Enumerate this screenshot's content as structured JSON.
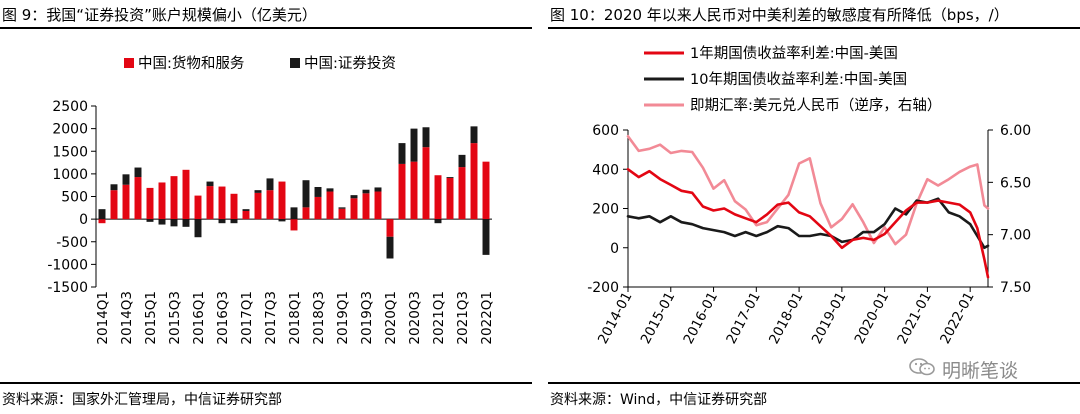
{
  "left": {
    "title": "图 9：我国“证券投资”账户规模偏小（亿美元）",
    "source": "资料来源：国家外汇管理局，中信证券研究部"
  },
  "right": {
    "title": "图 10：2020 年以来人民币对中美利差的敏感度有所降低（bps，/）",
    "source": "资料来源：Wind，中信证券研究部"
  },
  "watermark": {
    "text": "明晰笔谈"
  },
  "colors": {
    "red": "#e30613",
    "black": "#1a1a1a",
    "pink": "#f28a96"
  },
  "chart_data": [
    {
      "type": "bar",
      "stacked": true,
      "categories": [
        "2014Q1",
        "2014Q2",
        "2014Q3",
        "2014Q4",
        "2015Q1",
        "2015Q2",
        "2015Q3",
        "2015Q4",
        "2016Q1",
        "2016Q2",
        "2016Q3",
        "2016Q4",
        "2017Q1",
        "2017Q2",
        "2017Q3",
        "2017Q4",
        "2018Q1",
        "2018Q2",
        "2018Q3",
        "2018Q4",
        "2019Q1",
        "2019Q2",
        "2019Q3",
        "2019Q4",
        "2020Q1",
        "2020Q2",
        "2020Q3",
        "2020Q4",
        "2021Q1",
        "2021Q2",
        "2021Q3",
        "2021Q4",
        "2022Q1"
      ],
      "tick_labels": [
        "2014Q1",
        "2014Q3",
        "2015Q1",
        "2015Q3",
        "2016Q1",
        "2016Q3",
        "2017Q1",
        "2017Q3",
        "2018Q1",
        "2018Q3",
        "2019Q1",
        "2019Q3",
        "2020Q1",
        "2020Q3",
        "2021Q1",
        "2021Q3",
        "2022Q1"
      ],
      "series": [
        {
          "name": "中国:货物和服务",
          "color": "#e30613",
          "values": [
            -90,
            640,
            760,
            930,
            690,
            810,
            950,
            1090,
            520,
            730,
            720,
            560,
            180,
            580,
            640,
            830,
            -250,
            260,
            490,
            610,
            230,
            460,
            570,
            610,
            -390,
            1220,
            1270,
            1590,
            970,
            910,
            1150,
            1680,
            1270
          ]
        },
        {
          "name": "中国:证券投资",
          "color": "#1a1a1a",
          "values": [
            220,
            130,
            230,
            210,
            -60,
            -120,
            -160,
            -170,
            -400,
            100,
            -90,
            -90,
            40,
            60,
            260,
            -50,
            260,
            600,
            220,
            70,
            30,
            70,
            80,
            90,
            -480,
            460,
            730,
            440,
            -90,
            20,
            270,
            370,
            -790
          ]
        }
      ],
      "ylim": [
        -1500,
        2500
      ],
      "yticks": [
        -1500,
        -1000,
        -500,
        0,
        500,
        1000,
        1500,
        2000,
        2500
      ],
      "legend_position": "top-left"
    },
    {
      "type": "line",
      "x_tick_labels": [
        "2014-01",
        "2015-01",
        "2016-01",
        "2017-01",
        "2018-01",
        "2019-01",
        "2020-01",
        "2021-01",
        "2022-01"
      ],
      "x_range": [
        "2014-01",
        "2022-06"
      ],
      "left_ylim": [
        -200,
        600
      ],
      "left_yticks": [
        -200,
        0,
        200,
        400,
        600
      ],
      "right_ylim": [
        6.0,
        7.5
      ],
      "right_yticks": [
        "6.00",
        "6.50",
        "7.00",
        "7.50"
      ],
      "right_axis_inverted": true,
      "legend_position": "top",
      "series": [
        {
          "name": "1年期国债收益率利差:中国-美国",
          "axis": "left",
          "color": "#e30613",
          "x": [
            "2014-01",
            "2014-04",
            "2014-07",
            "2014-10",
            "2015-01",
            "2015-04",
            "2015-07",
            "2015-10",
            "2016-01",
            "2016-04",
            "2016-07",
            "2016-10",
            "2017-01",
            "2017-04",
            "2017-07",
            "2017-10",
            "2018-01",
            "2018-04",
            "2018-07",
            "2018-10",
            "2019-01",
            "2019-04",
            "2019-07",
            "2019-10",
            "2020-01",
            "2020-04",
            "2020-07",
            "2020-10",
            "2021-01",
            "2021-04",
            "2021-07",
            "2021-10",
            "2022-01",
            "2022-03",
            "2022-05",
            "2022-06"
          ],
          "y": [
            400,
            360,
            390,
            350,
            320,
            290,
            280,
            210,
            190,
            200,
            170,
            150,
            130,
            170,
            220,
            230,
            180,
            160,
            110,
            60,
            0,
            40,
            50,
            40,
            70,
            130,
            190,
            230,
            230,
            240,
            230,
            220,
            180,
            100,
            -60,
            -150
          ]
        },
        {
          "name": "10年期国债收益率利差:中国-美国",
          "axis": "left",
          "color": "#1a1a1a",
          "x": [
            "2014-01",
            "2014-04",
            "2014-07",
            "2014-10",
            "2015-01",
            "2015-04",
            "2015-07",
            "2015-10",
            "2016-01",
            "2016-04",
            "2016-07",
            "2016-10",
            "2017-01",
            "2017-04",
            "2017-07",
            "2017-10",
            "2018-01",
            "2018-04",
            "2018-07",
            "2018-10",
            "2019-01",
            "2019-04",
            "2019-07",
            "2019-10",
            "2020-01",
            "2020-04",
            "2020-07",
            "2020-10",
            "2021-01",
            "2021-04",
            "2021-07",
            "2021-10",
            "2022-01",
            "2022-03",
            "2022-05",
            "2022-06"
          ],
          "y": [
            160,
            150,
            160,
            130,
            160,
            130,
            120,
            100,
            90,
            80,
            60,
            80,
            60,
            80,
            110,
            100,
            60,
            60,
            70,
            60,
            30,
            40,
            80,
            80,
            120,
            200,
            170,
            240,
            230,
            250,
            180,
            160,
            120,
            60,
            0,
            10
          ]
        },
        {
          "name": "即期汇率:美元兑人民币（逆序，右轴）",
          "axis": "right",
          "color": "#f28a96",
          "x": [
            "2014-01",
            "2014-04",
            "2014-07",
            "2014-10",
            "2015-01",
            "2015-04",
            "2015-07",
            "2015-10",
            "2016-01",
            "2016-04",
            "2016-07",
            "2016-10",
            "2017-01",
            "2017-04",
            "2017-07",
            "2017-10",
            "2018-01",
            "2018-04",
            "2018-07",
            "2018-10",
            "2019-01",
            "2019-04",
            "2019-07",
            "2019-10",
            "2020-01",
            "2020-04",
            "2020-07",
            "2020-10",
            "2021-01",
            "2021-04",
            "2021-07",
            "2021-10",
            "2022-01",
            "2022-03",
            "2022-05",
            "2022-06"
          ],
          "y": [
            6.06,
            6.2,
            6.18,
            6.14,
            6.22,
            6.2,
            6.21,
            6.36,
            6.56,
            6.48,
            6.68,
            6.76,
            6.91,
            6.88,
            6.75,
            6.62,
            6.32,
            6.27,
            6.7,
            6.93,
            6.85,
            6.71,
            6.88,
            7.08,
            6.93,
            7.09,
            7.0,
            6.7,
            6.47,
            6.53,
            6.47,
            6.4,
            6.35,
            6.33,
            6.72,
            6.75
          ]
        }
      ]
    }
  ]
}
